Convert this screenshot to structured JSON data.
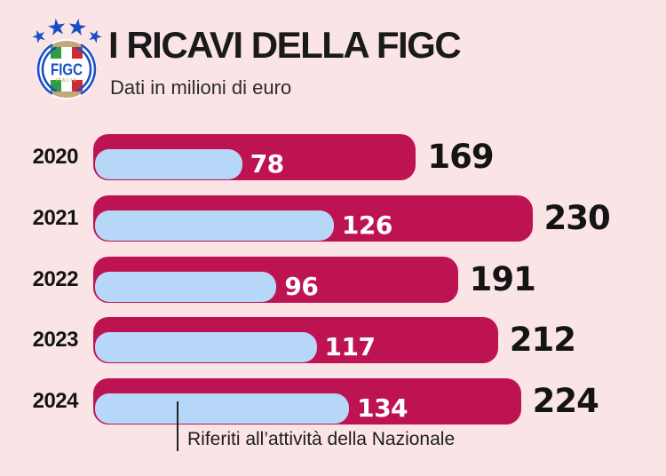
{
  "colors": {
    "background": "#FAE4E6",
    "bar_primary": "#BE1352",
    "bar_secondary": "#B7D7F8",
    "title_text": "#1A1A1A",
    "value_outer_text": "#141414",
    "value_inner_text": "#FFFFFF",
    "annotation": "#222222",
    "logo_blue": "#1A4FC8",
    "logo_gold": "#C2A977",
    "flag_green": "#2F9E41",
    "flag_white": "#FFFFFF",
    "flag_red": "#CE2B37"
  },
  "header": {
    "title": "I RICAVI DELLA FIGC",
    "subtitle": "Dati in milioni di euro",
    "logo": {
      "acronym": "FIGC",
      "country": "ITALIA"
    }
  },
  "chart_data": {
    "type": "bar",
    "orientation": "horizontal",
    "title": "I RICAVI DELLA FIGC",
    "subtitle": "Dati in milioni di euro",
    "unit": "milioni di euro",
    "categories": [
      "2020",
      "2021",
      "2022",
      "2023",
      "2024"
    ],
    "series": [
      {
        "name": "ricavi-totali",
        "color": "#BE1352",
        "values": [
          169,
          230,
          191,
          212,
          224
        ],
        "label_style": "black-outside"
      },
      {
        "name": "ricavi-nazionale",
        "color": "#B7D7F8",
        "values": [
          78,
          126,
          96,
          117,
          134
        ],
        "label_style": "white-inside"
      }
    ],
    "annotation": {
      "text": "Riferiti all’attività della Nazionale",
      "target": {
        "category": "2024",
        "series": "ricavi-nazionale"
      }
    },
    "axis": {
      "x_min": 0,
      "x_max_implied": 230,
      "gridlines": false,
      "legend": false
    }
  }
}
